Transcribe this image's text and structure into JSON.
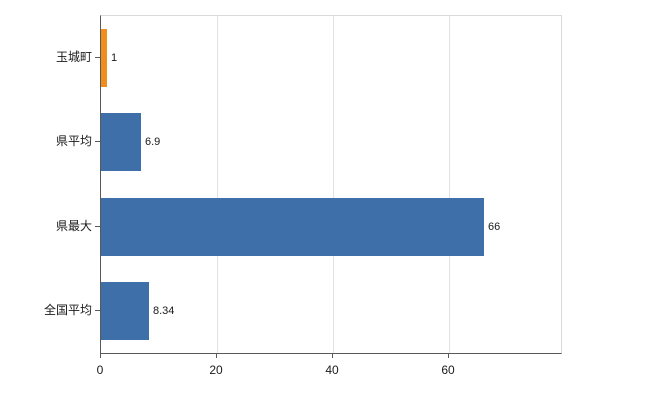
{
  "chart_data": {
    "type": "bar",
    "orientation": "horizontal",
    "title": "",
    "xlabel": "",
    "ylabel": "",
    "categories": [
      "玉城町",
      "県平均",
      "県最大",
      "全国平均"
    ],
    "values": [
      1,
      6.9,
      66,
      8.34
    ],
    "value_labels": [
      "1",
      "6.9",
      "66",
      "8.34"
    ],
    "bar_colors": [
      "#ef8e1d",
      "#3f6fa8",
      "#3f6fa8",
      "#3f6fa8"
    ],
    "xlim": [
      0,
      79.2
    ],
    "xticks": [
      0,
      20,
      40,
      60
    ],
    "grid": true,
    "legend": "none",
    "colors": {
      "highlight_orange": "#ef8e1d",
      "series_blue": "#3f6fa8",
      "gridline": "#e2e2e2",
      "axis": "#595959",
      "background": "#ffffff",
      "text": "#1a1a1a"
    }
  }
}
